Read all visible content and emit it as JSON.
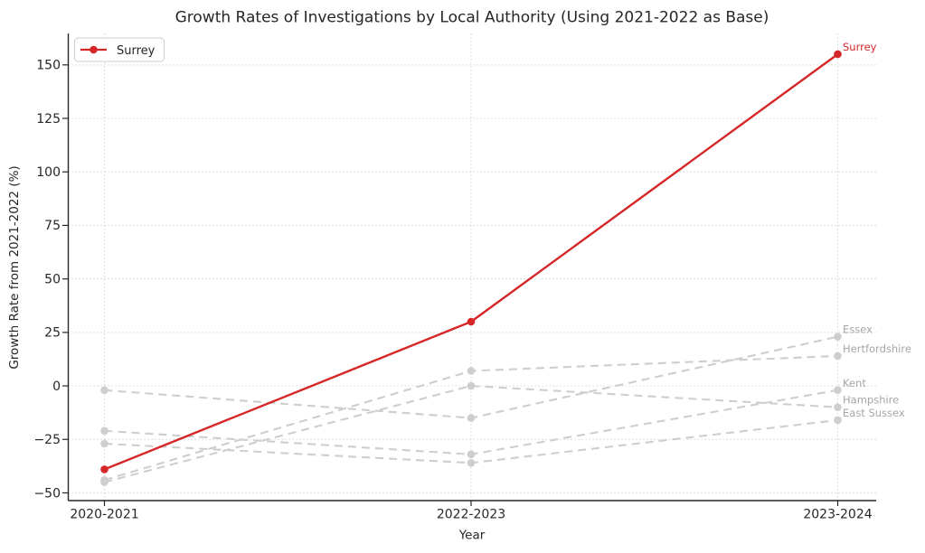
{
  "page": {
    "background": "#ffffff"
  },
  "colors": {
    "accent_red": "#d62728",
    "muted_gray": "#cecece",
    "end_label_gray": "#a6a6a6",
    "axis_dark": "#262626",
    "grid_gray": "#d4d4d4"
  },
  "legend": {
    "position": "upper-left",
    "label": "Surrey"
  },
  "chart_data": {
    "type": "line",
    "title": "Growth Rates of Investigations by Local Authority (Using 2021-2022 as Base)",
    "xlabel": "Year",
    "ylabel": "Growth Rate from 2021-2022 (%)",
    "categories": [
      "2020-2021",
      "2022-2023",
      "2023-2024"
    ],
    "yticks": [
      -50,
      -25,
      0,
      25,
      50,
      75,
      100,
      125,
      150
    ],
    "ylim": [
      -53.6,
      164.7
    ],
    "grid": true,
    "legend_position": "upper left",
    "legend_entries": [
      "Surrey"
    ],
    "series": [
      {
        "name": "Essex",
        "values": [
          -2,
          -15,
          23
        ],
        "color": "#cecece",
        "style": "dashed",
        "end_label": true,
        "highlight": false
      },
      {
        "name": "Hertfordshire",
        "values": [
          -44,
          7,
          14
        ],
        "color": "#cecece",
        "style": "dashed",
        "end_label": true,
        "highlight": false
      },
      {
        "name": "Kent",
        "values": [
          -21,
          -32,
          -2
        ],
        "color": "#cecece",
        "style": "dashed",
        "end_label": true,
        "highlight": false
      },
      {
        "name": "Hampshire",
        "values": [
          -45,
          0,
          -10
        ],
        "color": "#cecece",
        "style": "dashed",
        "end_label": true,
        "highlight": false
      },
      {
        "name": "East Sussex",
        "values": [
          -27,
          -36,
          -16
        ],
        "color": "#cecece",
        "style": "dashed",
        "end_label": true,
        "highlight": false
      },
      {
        "name": "Surrey",
        "values": [
          -39,
          30,
          155
        ],
        "color": "#d62728",
        "style": "solid",
        "end_label": true,
        "highlight": true
      }
    ]
  }
}
